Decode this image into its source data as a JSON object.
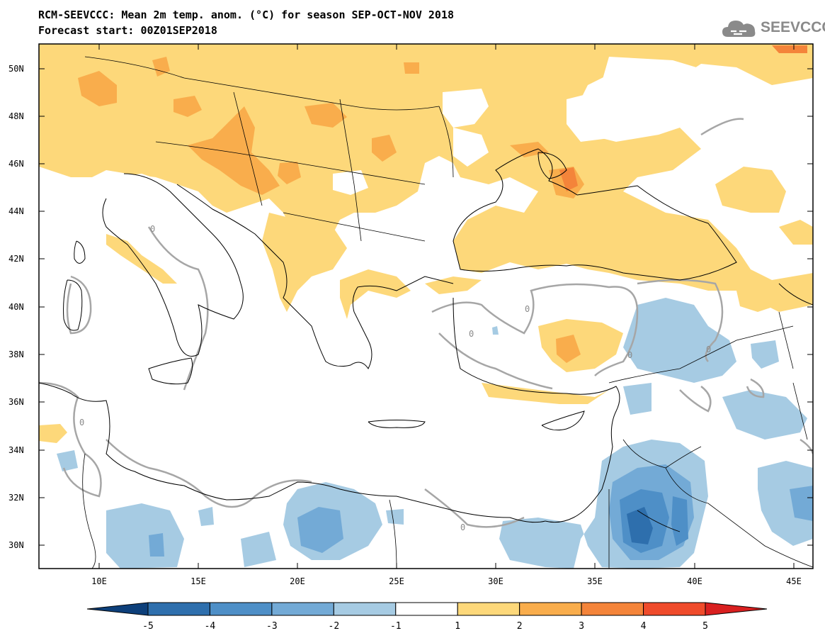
{
  "header": {
    "title_line1": "RCM-SEEVCCC: Mean 2m temp. anom. (°C) for season SEP-OCT-NOV 2018",
    "title_line2": "Forecast start: 00Z01SEP2018",
    "logo_text": "SEEVCCC",
    "logo_icon": "cloud-icon"
  },
  "map": {
    "region": "Eastern Mediterranean / South-East Europe",
    "lon_range": [
      7,
      46
    ],
    "lat_range": [
      29,
      51
    ],
    "lat_ticks": [
      "50N",
      "48N",
      "46N",
      "44N",
      "42N",
      "40N",
      "38N",
      "36N",
      "34N",
      "32N",
      "30N"
    ],
    "lon_ticks": [
      "10E",
      "15E",
      "20E",
      "25E",
      "30E",
      "35E",
      "40E",
      "45E"
    ],
    "contour_labels": [
      "0",
      "0",
      "0",
      "0",
      "0",
      "0",
      "0"
    ]
  },
  "colorbar": {
    "labels": [
      "-5",
      "-4",
      "-3",
      "-2",
      "-1",
      "1",
      "2",
      "3",
      "4",
      "5"
    ],
    "colors": [
      "#0d3f7a",
      "#2e6fad",
      "#4e8fc7",
      "#73aad6",
      "#a6cbe3",
      "#ffffff",
      "#fdd87a",
      "#f9ad4c",
      "#f4843a",
      "#ef4b2b",
      "#d92020"
    ]
  }
}
